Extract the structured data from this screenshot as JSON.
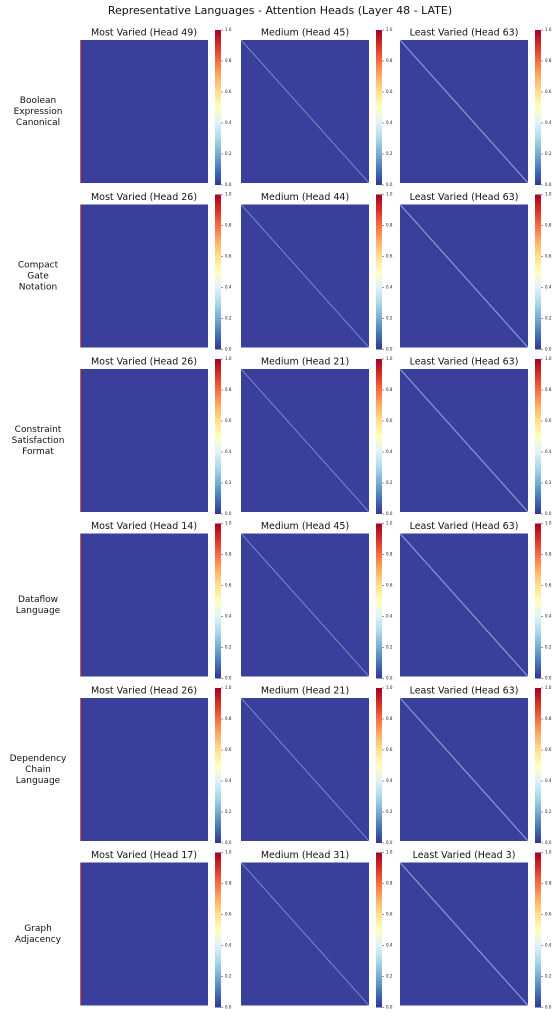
{
  "chart_data": {
    "type": "heatmap_grid",
    "title": "Representative Languages - Attention Heads (Layer 48 - LATE)",
    "colorbar": {
      "ticks": [
        {
          "value": 0,
          "label": "0.0"
        },
        0.2,
        0.4,
        0.6,
        0.8,
        {
          "value": 1,
          "label": "1.0"
        }
      ],
      "colors": [
        "#313695",
        "#4575b4",
        "#74add1",
        "#abd9e9",
        "#e0f3f8",
        "#ffffbf",
        "#fee090",
        "#fdae61",
        "#f46d43",
        "#d73027",
        "#a50026"
      ]
    },
    "rows": [
      {
        "label": [
          "Boolean",
          "Expression",
          "Canonical"
        ],
        "panels": [
          "Most Varied (Head 49)",
          "Medium (Head 45)",
          "Least Varied (Head 63)"
        ]
      },
      {
        "label": [
          "Compact",
          "Gate",
          "Notation"
        ],
        "panels": [
          "Most Varied (Head 26)",
          "Medium (Head 44)",
          "Least Varied (Head 63)"
        ]
      },
      {
        "label": [
          "Constraint",
          "Satisfaction",
          "Format"
        ],
        "panels": [
          "Most Varied (Head 26)",
          "Medium (Head 21)",
          "Least Varied (Head 63)"
        ]
      },
      {
        "label": [
          "Dataflow",
          "Language"
        ],
        "panels": [
          "Most Varied (Head 14)",
          "Medium (Head 45)",
          "Least Varied (Head 63)"
        ]
      },
      {
        "label": [
          "Dependency",
          "Chain",
          "Language"
        ],
        "panels": [
          "Most Varied (Head 26)",
          "Medium (Head 21)",
          "Least Varied (Head 63)"
        ]
      },
      {
        "label": [
          "Graph",
          "Adjacency"
        ],
        "panels": [
          "Most Varied (Head 17)",
          "Medium (Head 31)",
          "Least Varied (Head 3)"
        ]
      }
    ]
  }
}
